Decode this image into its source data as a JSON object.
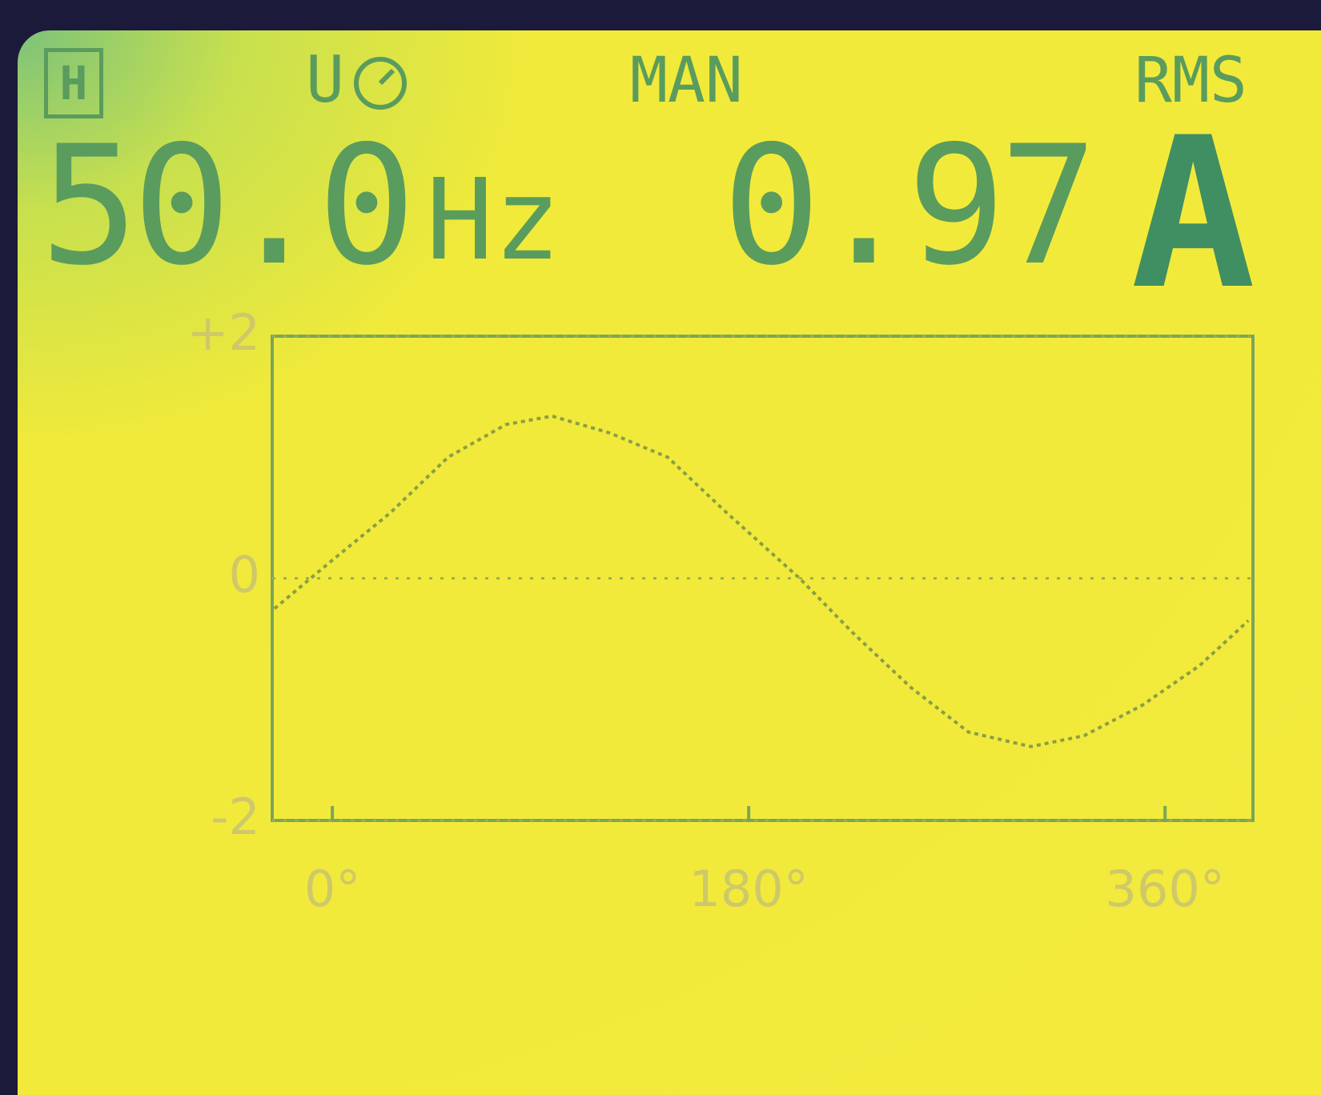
{
  "header": {
    "hold_icon": "H",
    "mode": "U",
    "range": "MAN",
    "measure": "RMS"
  },
  "readings": {
    "frequency": "50.0",
    "frequency_unit": "Hz",
    "current": "0.97",
    "current_unit": "A"
  },
  "chart_data": {
    "type": "line",
    "x": [
      -25,
      0,
      25,
      50,
      75,
      95,
      120,
      145,
      170,
      202,
      225,
      250,
      275,
      302,
      325,
      350,
      375,
      396
    ],
    "series": [
      {
        "color": "#8a9f45",
        "values": [
          -0.25,
          0.15,
          0.54,
          1.0,
          1.27,
          1.34,
          1.2,
          1.0,
          0.55,
          0,
          -0.45,
          -0.9,
          -1.27,
          -1.39,
          -1.3,
          -1.05,
          -0.72,
          -0.35
        ]
      }
    ],
    "xlim": [
      -26,
      398
    ],
    "ylim": [
      -2,
      2
    ],
    "xticks": [
      {
        "value": 0,
        "label": "0°"
      },
      {
        "value": 180,
        "label": "180°"
      },
      {
        "value": 360,
        "label": "360°"
      }
    ],
    "yticks": [
      {
        "value": 2,
        "label": "+2"
      },
      0,
      {
        "value": -2,
        "label": "-2"
      }
    ],
    "grid": true
  }
}
